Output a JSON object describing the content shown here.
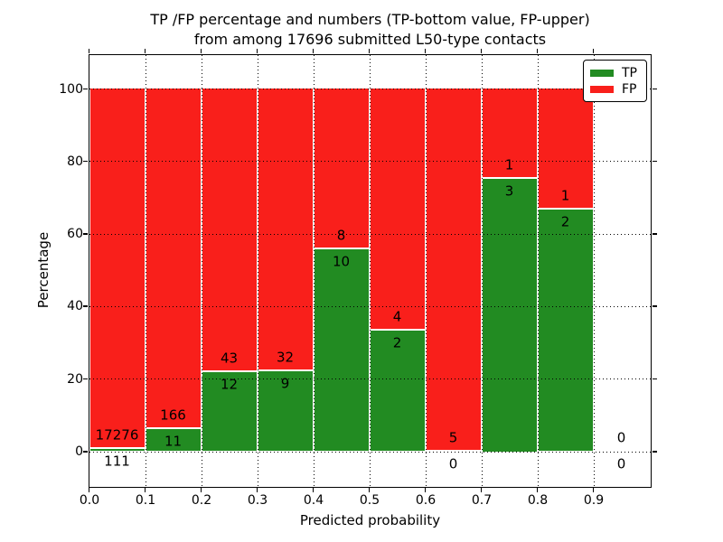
{
  "chart_data": {
    "type": "bar",
    "stacked": true,
    "normalized_to_percent": true,
    "title_line1": "TP /FP percentage and numbers (TP-bottom value, FP-upper)",
    "title_line2": "from among 17696 submitted L50-type contacts",
    "xlabel": "Predicted probability",
    "ylabel": "Percentage",
    "xlim": [
      0.0,
      1.0
    ],
    "ylim": [
      -9.5,
      109.5
    ],
    "grid": "dotted",
    "legend_position": "upper right",
    "x_ticks": [
      0.0,
      0.1,
      0.2,
      0.3,
      0.4,
      0.5,
      0.6,
      0.7,
      0.8,
      0.9
    ],
    "x_tick_labels": [
      "0.0",
      "0.1",
      "0.2",
      "0.3",
      "0.4",
      "0.5",
      "0.6",
      "0.7",
      "0.8",
      "0.9"
    ],
    "y_ticks": [
      0,
      20,
      40,
      60,
      80,
      100
    ],
    "series": [
      {
        "name": "TP",
        "color": "#228b22"
      },
      {
        "name": "FP",
        "color": "#f91f1b"
      }
    ],
    "bins": [
      {
        "range": [
          0.0,
          0.1
        ],
        "tp": 111,
        "fp": 17276,
        "tp_pct": 0.64,
        "bar_total_pct": 100
      },
      {
        "range": [
          0.1,
          0.2
        ],
        "tp": 11,
        "fp": 166,
        "tp_pct": 6.21,
        "bar_total_pct": 100
      },
      {
        "range": [
          0.2,
          0.3
        ],
        "tp": 12,
        "fp": 43,
        "tp_pct": 21.82,
        "bar_total_pct": 100
      },
      {
        "range": [
          0.3,
          0.4
        ],
        "tp": 9,
        "fp": 32,
        "tp_pct": 21.95,
        "bar_total_pct": 100
      },
      {
        "range": [
          0.4,
          0.5
        ],
        "tp": 10,
        "fp": 8,
        "tp_pct": 55.56,
        "bar_total_pct": 100
      },
      {
        "range": [
          0.5,
          0.6
        ],
        "tp": 2,
        "fp": 4,
        "tp_pct": 33.33,
        "bar_total_pct": 100
      },
      {
        "range": [
          0.6,
          0.7
        ],
        "tp": 0,
        "fp": 5,
        "tp_pct": 0.0,
        "bar_total_pct": 100
      },
      {
        "range": [
          0.7,
          0.8
        ],
        "tp": 3,
        "fp": 1,
        "tp_pct": 75.0,
        "bar_total_pct": 100
      },
      {
        "range": [
          0.8,
          0.9
        ],
        "tp": 2,
        "fp": 1,
        "tp_pct": 66.67,
        "bar_total_pct": 100
      },
      {
        "range": [
          0.9,
          1.0
        ],
        "tp": 0,
        "fp": 0,
        "tp_pct": 0.0,
        "bar_total_pct": 0
      }
    ]
  }
}
